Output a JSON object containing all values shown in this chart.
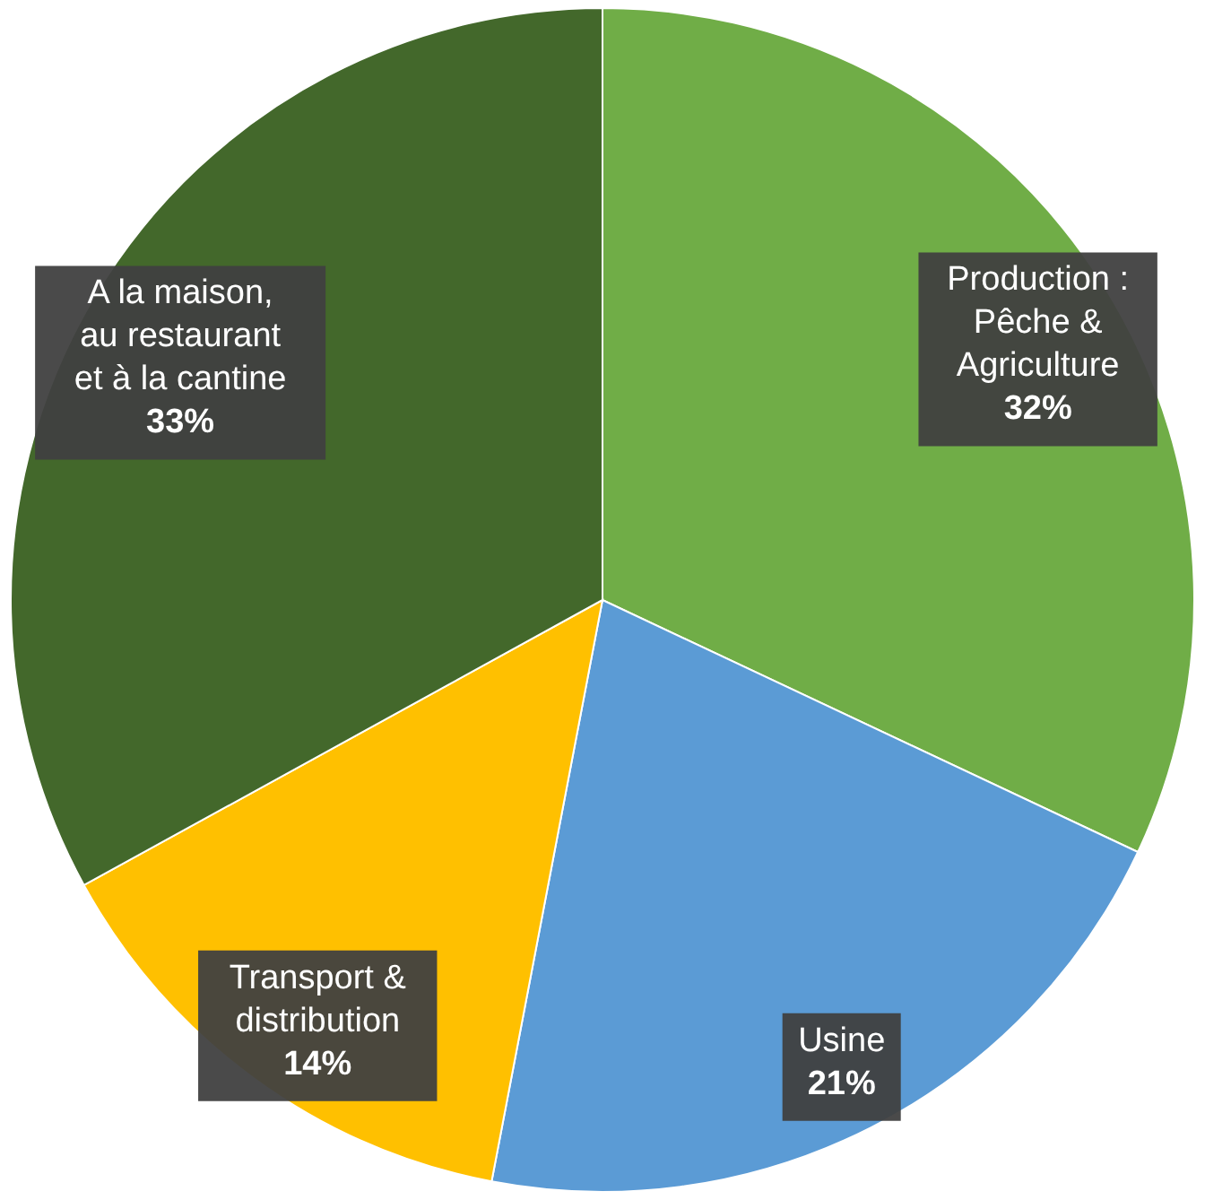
{
  "chart_data": {
    "type": "pie",
    "categories": [
      "Production :\nPêche &\nAgriculture",
      "Usine",
      "Transport &\ndistribution",
      "A la maison,\nau restaurant\net à la cantine"
    ],
    "values": [
      32,
      21,
      14,
      33
    ],
    "colors": [
      "#70ad47",
      "#5b9bd5",
      "#ffc000",
      "#43682b"
    ],
    "value_labels": [
      "32%",
      "21%",
      "14%",
      "33%"
    ]
  }
}
